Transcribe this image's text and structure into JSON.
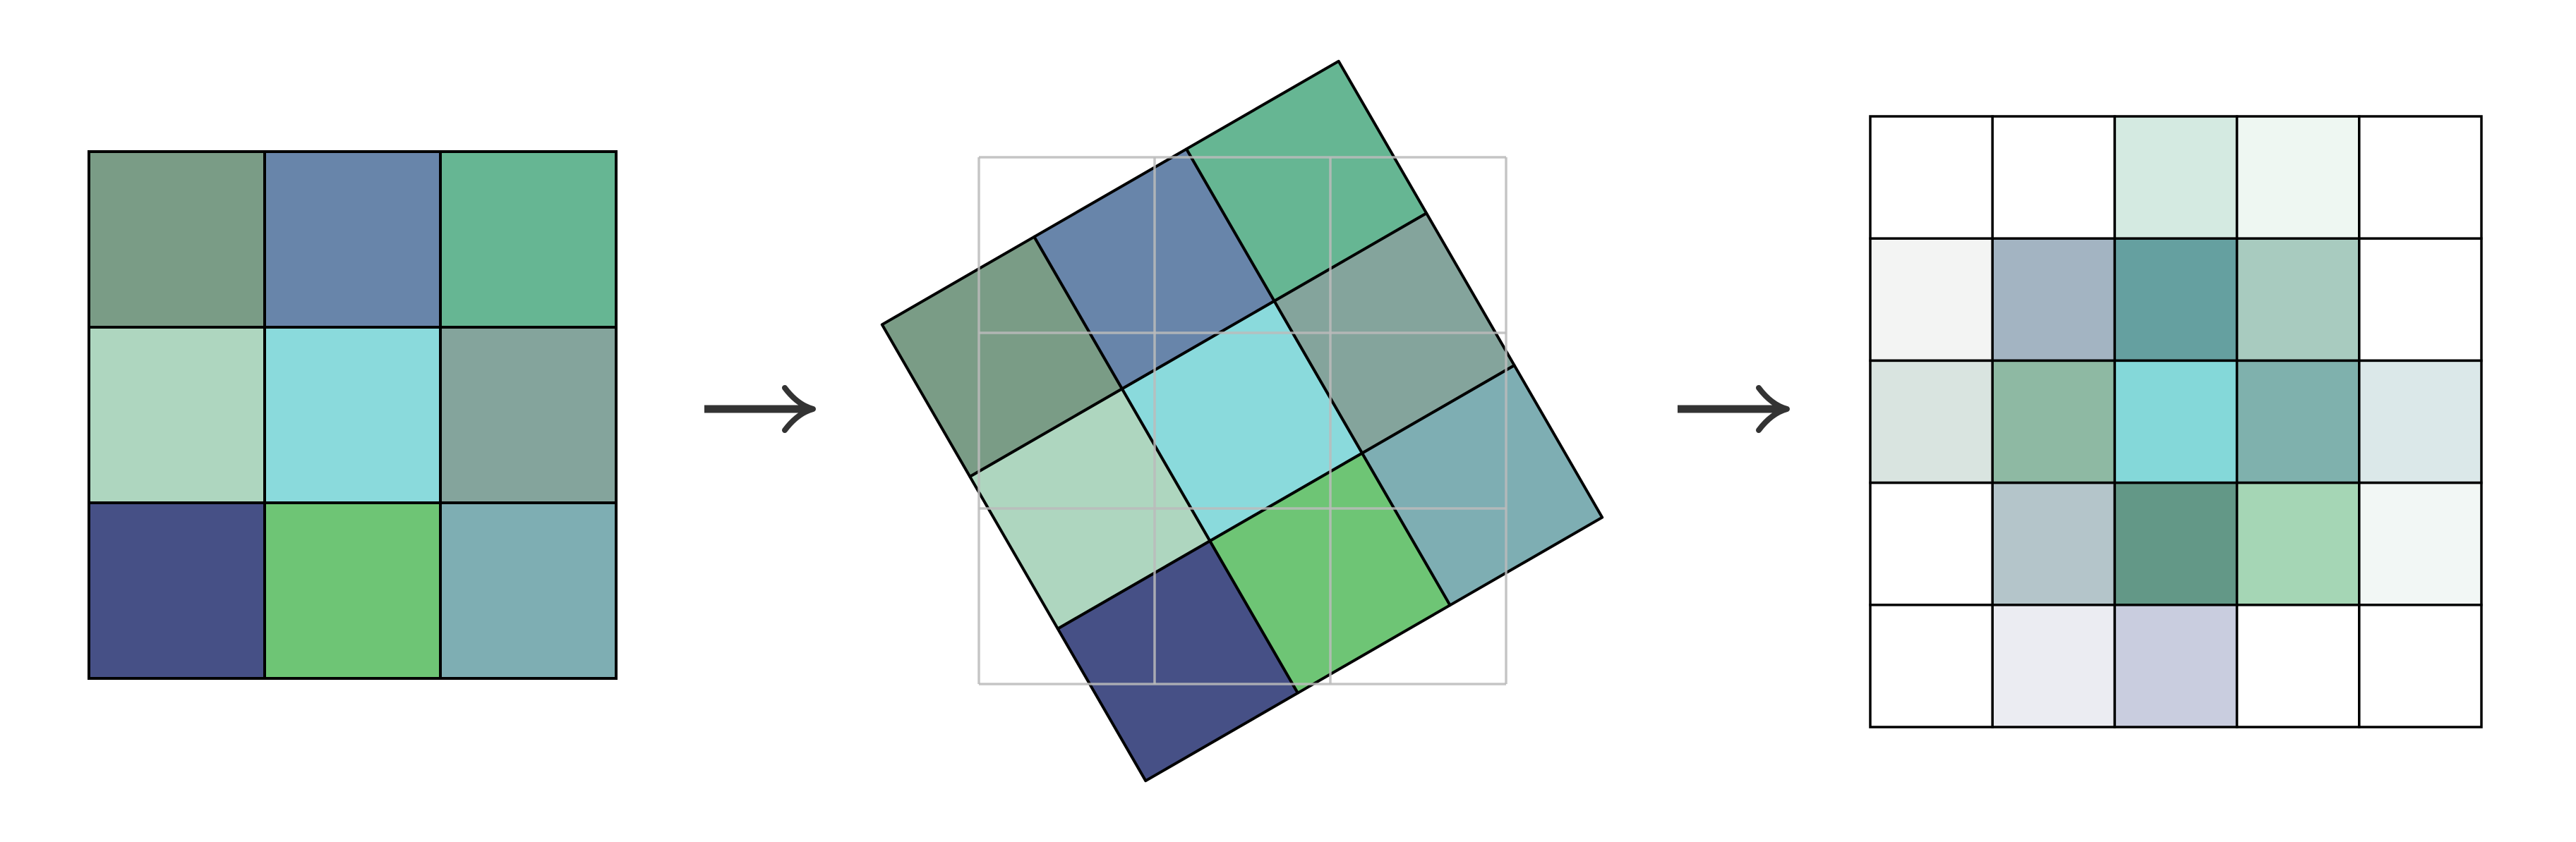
{
  "source_grid": {
    "cells": [
      [
        "#7a9c86",
        "#6885aa",
        "#66b693"
      ],
      [
        "#aed6bf",
        "#8adadc",
        "#84a49c"
      ],
      [
        "#465086",
        "#6ec575",
        "#7eaeb3"
      ]
    ],
    "line_color": "#000000"
  },
  "rotated_grid": {
    "angle_deg": -30,
    "cells": [
      [
        "#7a9c86",
        "#6885aa",
        "#66b693"
      ],
      [
        "#aed6bf",
        "#8adadc",
        "#84a49c"
      ],
      [
        "#465086",
        "#6ec575",
        "#7eaeb3"
      ]
    ],
    "reference_grid_color": "#bbbbbb",
    "line_color": "#000000"
  },
  "result_grid": {
    "cells": [
      [
        "#ffffff",
        "#ffffff",
        "#d4eae1",
        "#eef7f2",
        "#ffffff"
      ],
      [
        "#f3f4f3",
        "#a3b4c2",
        "#65a0a0",
        "#a8cbbf",
        "#ffffff"
      ],
      [
        "#d9e4e0",
        "#8eb9a3",
        "#84d8d9",
        "#7fb1ad",
        "#dbe8e9"
      ],
      [
        "#ffffff",
        "#b4c5ca",
        "#639887",
        "#a5d6b5",
        "#f2f7f5"
      ],
      [
        "#ffffff",
        "#ebecf2",
        "#c9cddf",
        "#ffffff",
        "#ffffff"
      ]
    ],
    "line_color": "#000000"
  },
  "arrows": [
    {
      "icon": "right-arrow-icon",
      "color": "#333333"
    },
    {
      "icon": "right-arrow-icon",
      "color": "#333333"
    }
  ]
}
